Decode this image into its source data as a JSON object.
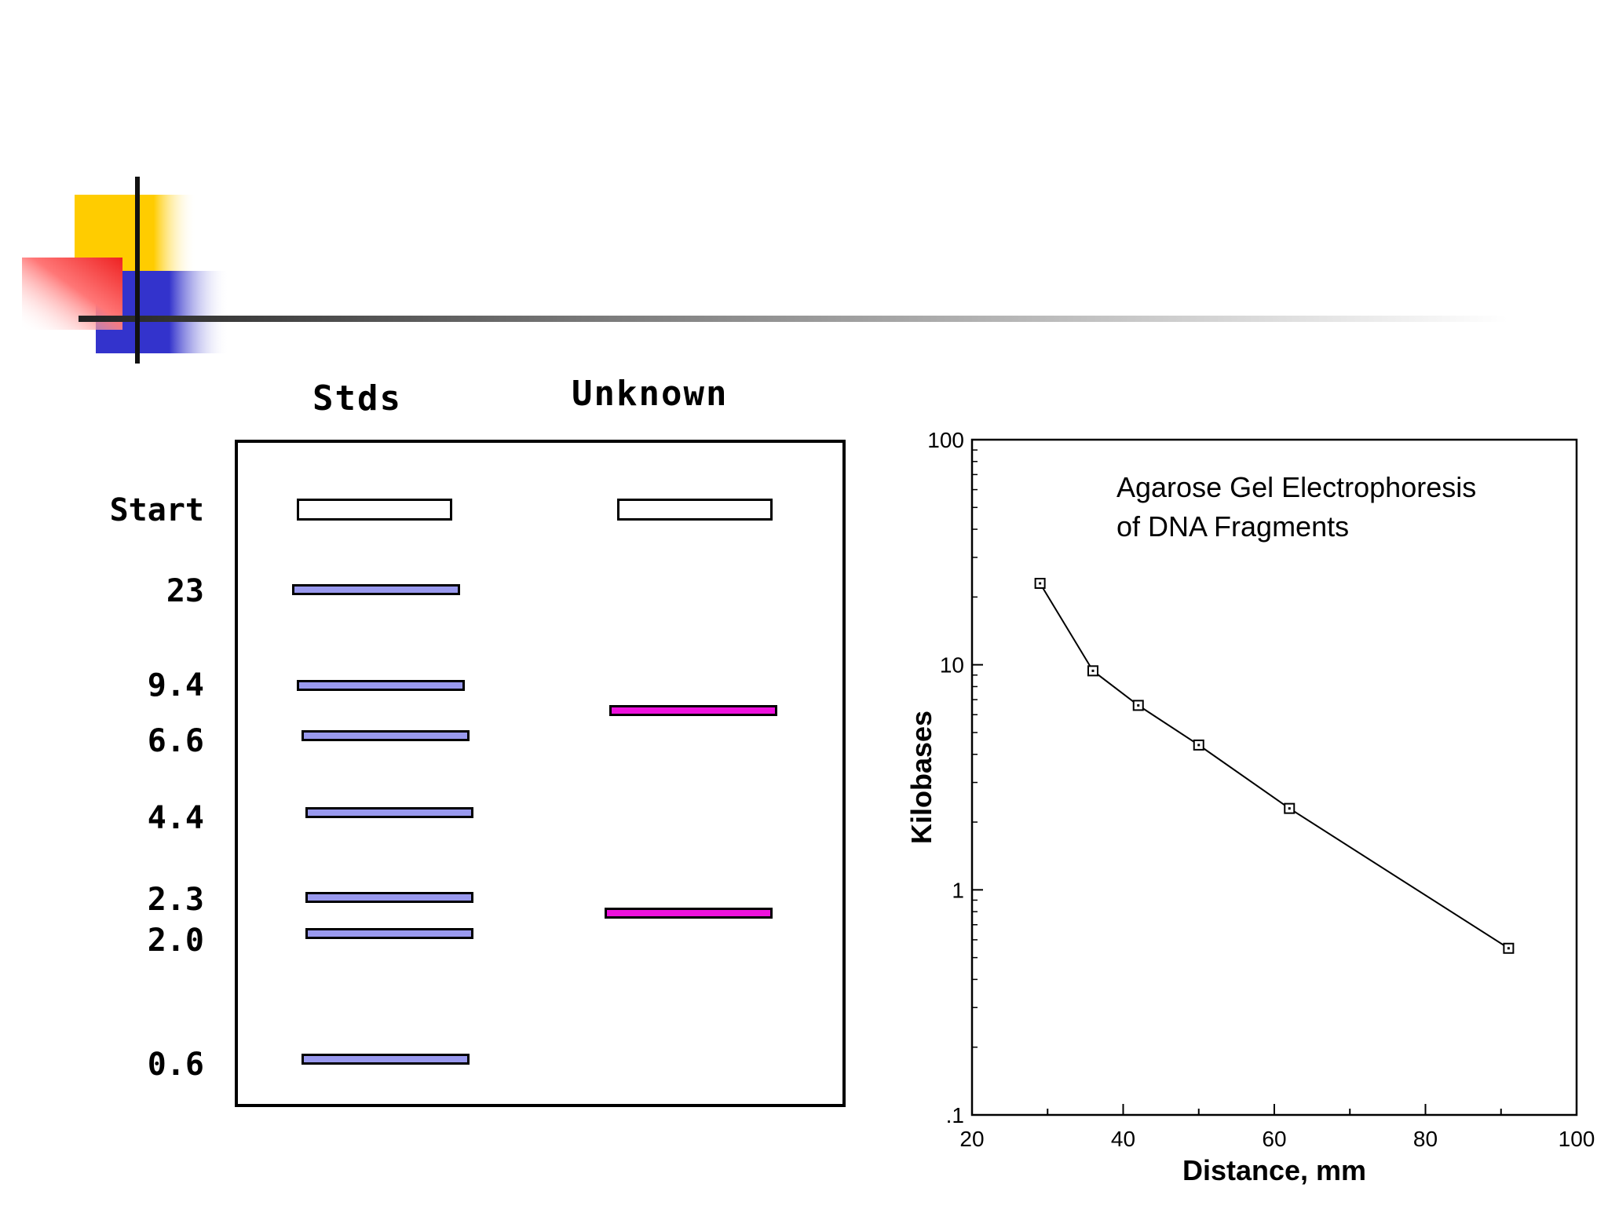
{
  "gel": {
    "headers": {
      "standards": "Stds",
      "unknown": "Unknown"
    },
    "start_label": "Start",
    "standard_sizes_kb": [
      "23",
      "9.4",
      "6.6",
      "4.4",
      "2.3",
      "2.0",
      "0.6"
    ],
    "colors": {
      "standard_band": "#9999ee",
      "unknown_band": "#ee11dd",
      "outline": "#000000"
    }
  },
  "chart_data": {
    "type": "scatter",
    "title": "Agarose Gel Electrophoresis of DNA Fragments",
    "title_lines": [
      "Agarose Gel Electrophoresis",
      "of DNA Fragments"
    ],
    "xlabel": "Distance, mm",
    "ylabel": "Kilobases",
    "xlim": [
      20,
      100
    ],
    "ylim": [
      0.1,
      100
    ],
    "yscale": "log",
    "xticks": [
      "20",
      "40",
      "60",
      "80",
      "100"
    ],
    "yticks": [
      ".1",
      "1",
      "10",
      "100"
    ],
    "grid": false,
    "connected": true,
    "marker": "open-square",
    "x": [
      29,
      36,
      42,
      50,
      62,
      91
    ],
    "y": [
      23,
      9.4,
      6.6,
      4.4,
      2.3,
      0.55
    ]
  }
}
